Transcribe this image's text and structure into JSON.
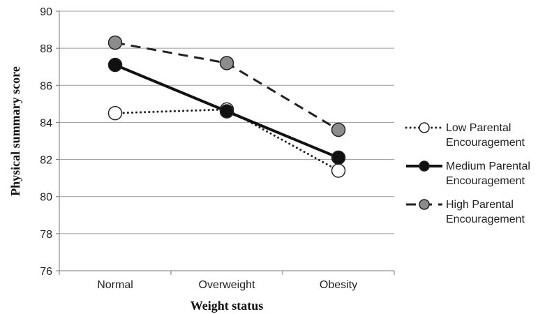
{
  "chart_data": {
    "type": "line",
    "title": "",
    "xlabel": "Weight status",
    "ylabel": "Physical summary score",
    "categories": [
      "Normal",
      "Overweight",
      "Obesity"
    ],
    "ylim": [
      76,
      90
    ],
    "yticks": [
      "76",
      "78",
      "80",
      "82",
      "84",
      "86",
      "88",
      "90"
    ],
    "grid": true,
    "legend_position": "right",
    "series": [
      {
        "name_lines": [
          "Low Parental",
          "Encouragement"
        ],
        "values": [
          84.5,
          84.7,
          81.4
        ],
        "line_style": "dotted",
        "marker_fill": "#ffffff"
      },
      {
        "name_lines": [
          "Medium Parental",
          "Encouragement"
        ],
        "values": [
          87.1,
          84.6,
          82.1
        ],
        "line_style": "solid",
        "marker_fill": "#111111"
      },
      {
        "name_lines": [
          "High Parental",
          "Encouragement"
        ],
        "values": [
          88.3,
          87.2,
          83.6
        ],
        "line_style": "dashed",
        "marker_fill": "#8c8c8c"
      }
    ]
  }
}
